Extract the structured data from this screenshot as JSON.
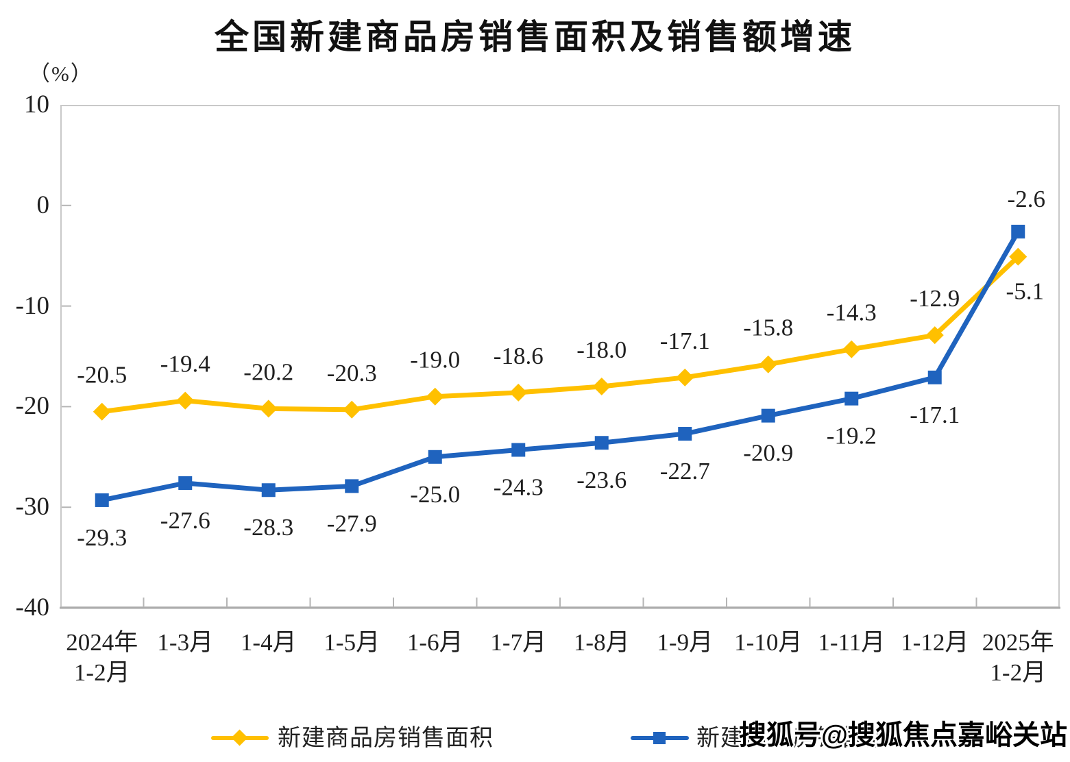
{
  "title": "全国新建商品房销售面积及销售额增速",
  "y_axis_unit": "（%）",
  "watermark": "搜狐号@搜狐焦点嘉峪关站",
  "colors": {
    "series_area": "#FFC000",
    "series_value": "#1F63BE",
    "axis_frame": "#C9C9C9",
    "axis_bottom": "#ABABAB",
    "label_text": "#1F1F1F"
  },
  "chart_data": {
    "type": "line",
    "title": "全国新建商品房销售面积及销售额增速",
    "categories": [
      [
        "2024年",
        "1-2月"
      ],
      [
        "1-3月"
      ],
      [
        "1-4月"
      ],
      [
        "1-5月"
      ],
      [
        "1-6月"
      ],
      [
        "1-7月"
      ],
      [
        "1-8月"
      ],
      [
        "1-9月"
      ],
      [
        "1-10月"
      ],
      [
        "1-11月"
      ],
      [
        "1-12月"
      ],
      [
        "2025年",
        "1-2月"
      ]
    ],
    "series": [
      {
        "name": "新建商品房销售面积",
        "marker": "diamond",
        "color": "#FFC000",
        "values": [
          -20.5,
          -19.4,
          -20.2,
          -20.3,
          -19.0,
          -18.6,
          -18.0,
          -17.1,
          -15.8,
          -14.3,
          -12.9,
          -5.1
        ]
      },
      {
        "name": "新建商品房销售额",
        "marker": "square",
        "color": "#1F63BE",
        "values": [
          -29.3,
          -27.6,
          -28.3,
          -27.9,
          -25.0,
          -24.3,
          -23.6,
          -22.7,
          -20.9,
          -19.2,
          -17.1,
          -2.6
        ]
      }
    ],
    "ylim": [
      -40,
      10
    ],
    "yticks": [
      10,
      0,
      -10,
      -20,
      -30,
      -40
    ],
    "xlabel": "",
    "ylabel": "（%）",
    "grid": false,
    "legend_position": "bottom"
  }
}
